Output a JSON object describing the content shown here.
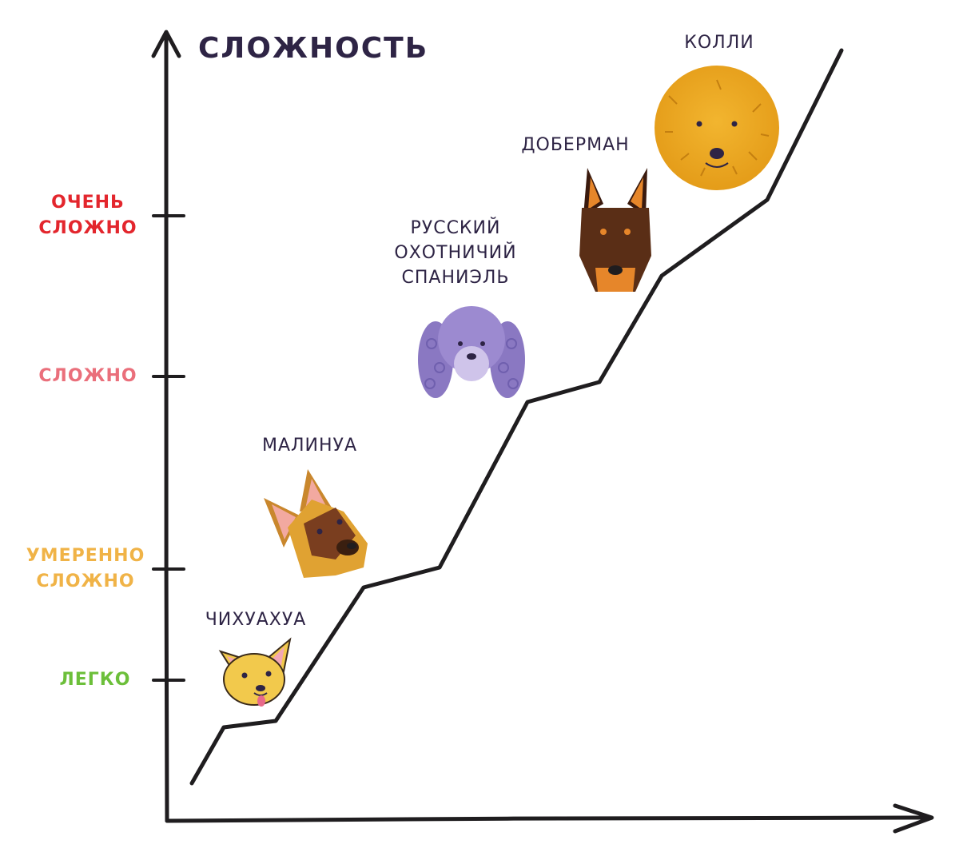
{
  "chart_data": {
    "type": "line",
    "ylabel": "СЛОЖНОСТЬ",
    "y_ticks": [
      {
        "lines": [
          "ЛЕГКО"
        ],
        "color": "#6cbf3a"
      },
      {
        "lines": [
          "УМЕРЕННО",
          "СЛОЖНО"
        ],
        "color": "#f0b347"
      },
      {
        "lines": [
          "СЛОЖНО"
        ],
        "color": "#ea6f7b"
      },
      {
        "lines": [
          "ОЧЕНЬ",
          "СЛОЖНО"
        ],
        "color": "#e3262d"
      }
    ],
    "categories": [
      {
        "lines": [
          "ЧИХУАХУА"
        ],
        "icon": "chihuahua-icon"
      },
      {
        "lines": [
          "МАЛИНУА"
        ],
        "icon": "malinois-icon"
      },
      {
        "lines": [
          "РУССКИЙ",
          "ОХОТНИЧИЙ",
          "СПАНИЭЛЬ"
        ],
        "icon": "spaniel-icon"
      },
      {
        "lines": [
          "ДОБЕРМАН"
        ],
        "icon": "doberman-icon"
      },
      {
        "lines": [
          "КОЛЛИ"
        ],
        "icon": "collie-icon"
      }
    ],
    "values": [
      1,
      2,
      2.7,
      3.4,
      4.1
    ],
    "legend": "none",
    "grid": false
  }
}
